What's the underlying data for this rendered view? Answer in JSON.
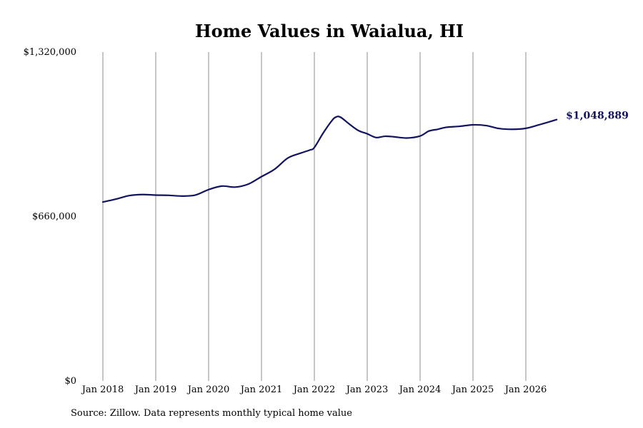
{
  "chart_data": {
    "type": "line",
    "title": "Home Values in Waialua, HI",
    "xlabel": "",
    "ylabel": "",
    "ylim": [
      0,
      1320000
    ],
    "y_ticks": [
      0,
      660000,
      1320000
    ],
    "y_tick_labels": [
      "$0",
      "$660,000",
      "$1,320,000"
    ],
    "x_ticks": [
      2018,
      2019,
      2020,
      2021,
      2022,
      2023,
      2024,
      2025,
      2026
    ],
    "x_tick_labels": [
      "Jan 2018",
      "Jan 2019",
      "Jan 2020",
      "Jan 2021",
      "Jan 2022",
      "Jan 2023",
      "Jan 2024",
      "Jan 2025",
      "Jan 2026"
    ],
    "grid": "vertical",
    "series": [
      {
        "color": "#13135e",
        "end_label": "$1,048,889",
        "x": [
          2018.0,
          2018.25,
          2018.5,
          2018.75,
          2019.0,
          2019.25,
          2019.5,
          2019.75,
          2020.0,
          2020.25,
          2020.5,
          2020.75,
          2021.0,
          2021.25,
          2021.5,
          2021.75,
          2021.917,
          2022.0,
          2022.167,
          2022.333,
          2022.417,
          2022.5,
          2022.667,
          2022.833,
          2023.0,
          2023.167,
          2023.333,
          2023.5,
          2023.75,
          2024.0,
          2024.167,
          2024.333,
          2024.5,
          2024.75,
          2025.0,
          2025.25,
          2025.5,
          2025.75,
          2026.0,
          2026.25,
          2026.583
        ],
        "values": [
          718000,
          730000,
          744000,
          748000,
          746000,
          745000,
          742000,
          746000,
          768000,
          782000,
          778000,
          790000,
          820000,
          850000,
          895000,
          915000,
          927000,
          937000,
          995000,
          1045000,
          1060000,
          1058000,
          1030000,
          1005000,
          992000,
          977000,
          982000,
          980000,
          975000,
          983000,
          1003000,
          1010000,
          1018000,
          1022000,
          1028000,
          1025000,
          1013000,
          1010000,
          1014000,
          1028000,
          1048889
        ]
      }
    ]
  },
  "footer": {
    "source": "Source: Zillow. Data represents monthly typical home value"
  }
}
